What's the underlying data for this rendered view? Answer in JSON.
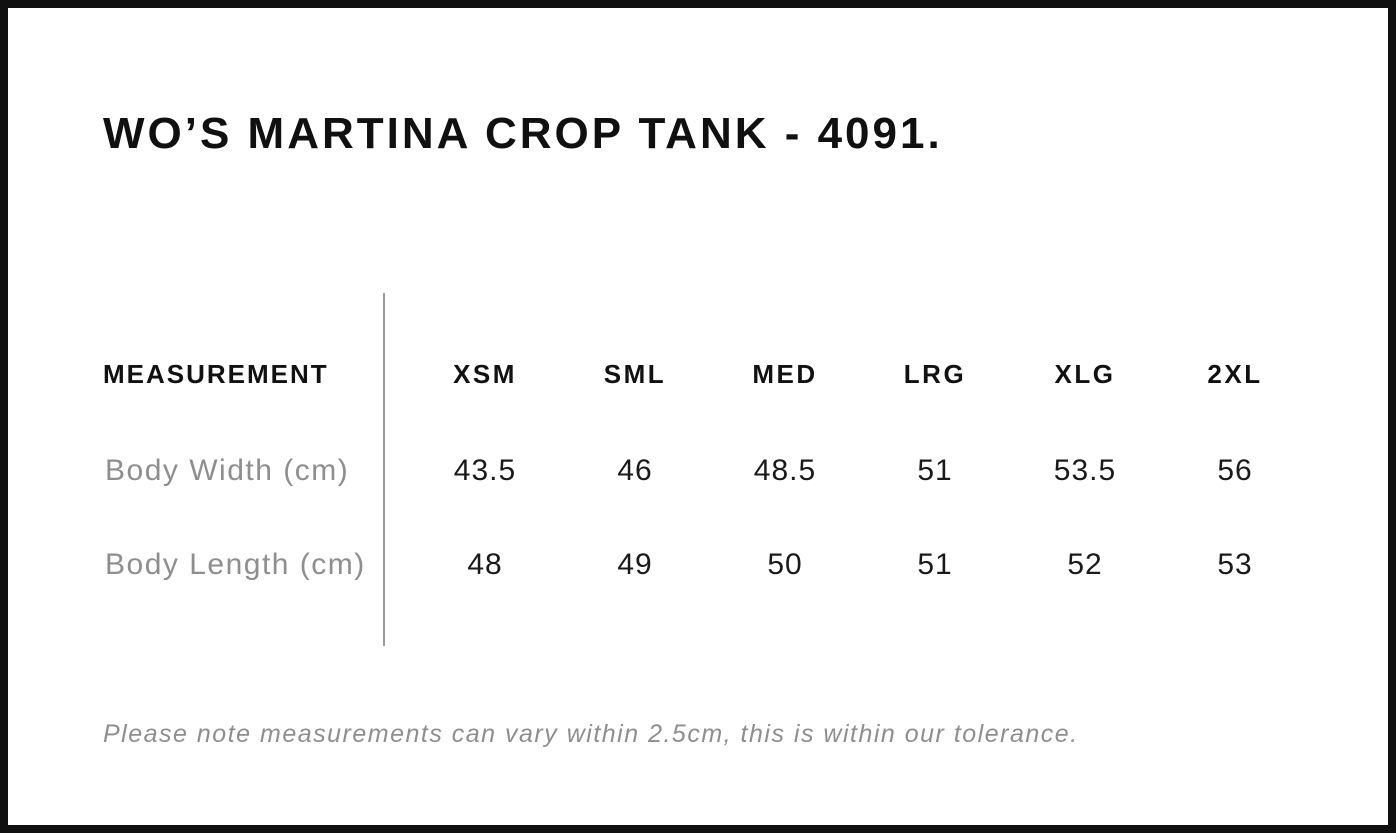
{
  "page": {
    "title": "WO’S MARTINA CROP TANK - 4091.",
    "tolerance_note": "Please note measurements can vary within 2.5cm, this is within our tolerance."
  },
  "size_chart": {
    "measurement_header": "MEASUREMENT",
    "size_headers": [
      "XSM",
      "SML",
      "MED",
      "LRG",
      "XLG",
      "2XL"
    ],
    "rows": [
      {
        "label": "Body Width (cm)",
        "values": [
          "43.5",
          "46",
          "48.5",
          "51",
          "53.5",
          "56"
        ]
      },
      {
        "label": "Body Length (cm)",
        "values": [
          "48",
          "49",
          "50",
          "51",
          "52",
          "53"
        ]
      }
    ]
  },
  "colors": {
    "frame_border": "#101010",
    "text_black": "#1a1a1a",
    "text_gray": "#8e8e8e",
    "divider_gray": "#9a9a9a",
    "background": "#ffffff"
  }
}
